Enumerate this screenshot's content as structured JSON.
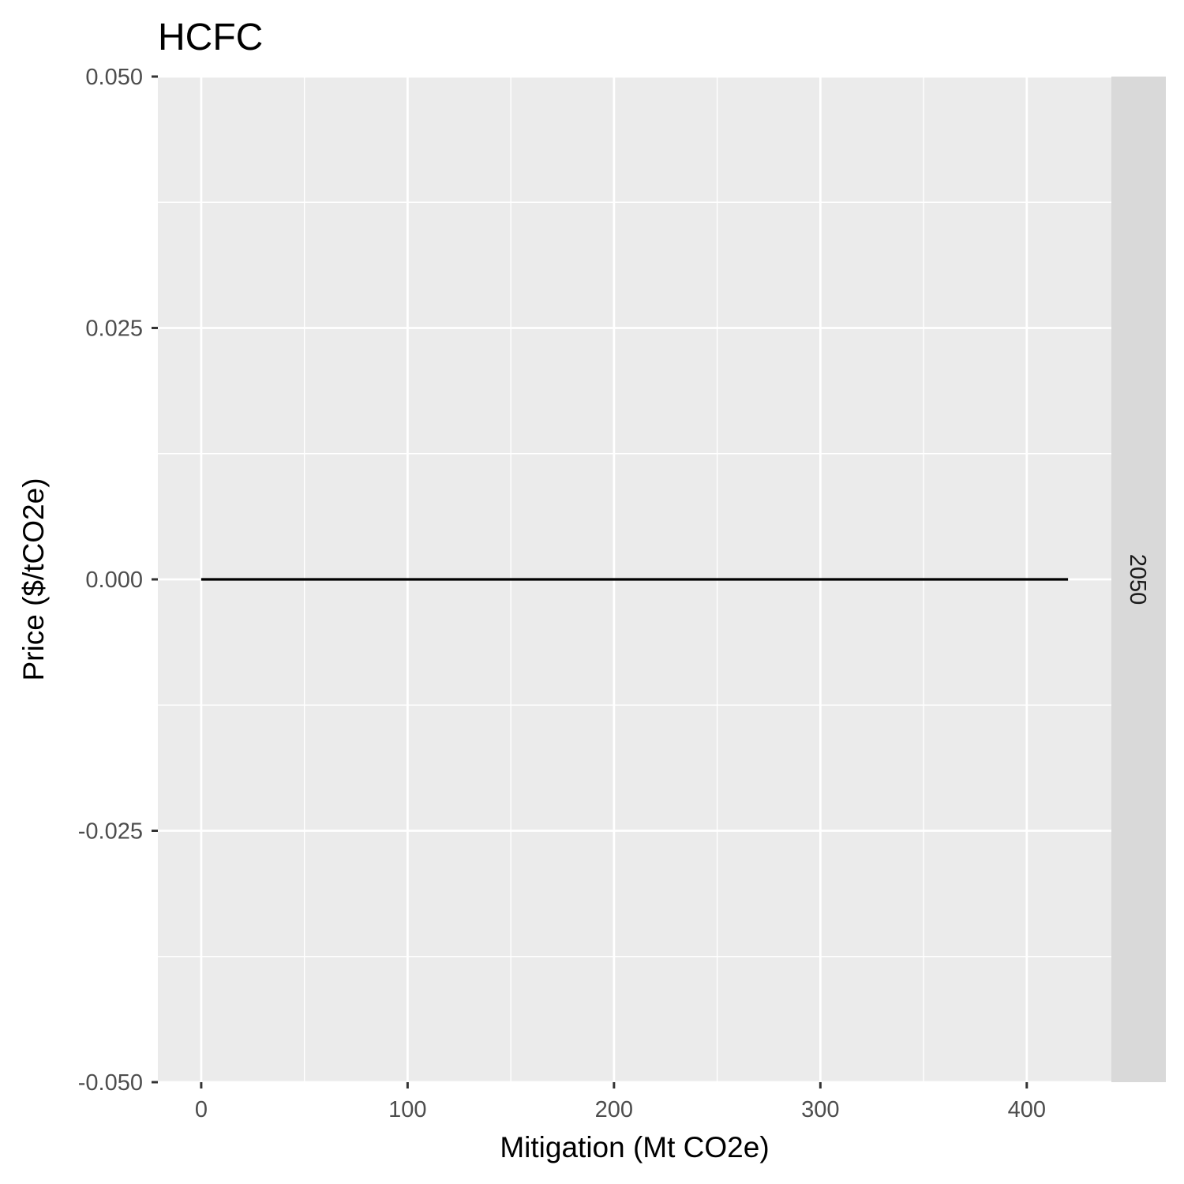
{
  "chart_data": {
    "type": "line",
    "title": "HCFC",
    "xlabel": "Mitigation (Mt CO2e)",
    "ylabel": "Price ($/tCO2e)",
    "facet_label": "2050",
    "xlim": [
      -21,
      441
    ],
    "ylim": [
      -0.05,
      0.05
    ],
    "x_ticks": [
      0,
      100,
      200,
      300,
      400
    ],
    "x_tick_labels": [
      "0",
      "100",
      "200",
      "300",
      "400"
    ],
    "y_ticks": [
      0.05,
      0.025,
      0,
      -0.025,
      -0.05
    ],
    "y_tick_labels": [
      "0.050",
      "0.025",
      "0.000",
      "-0.025",
      "-0.050"
    ],
    "x_minor": [
      50,
      150,
      250,
      350
    ],
    "y_minor": [
      0.0375,
      0.0125,
      -0.0125,
      -0.0375
    ],
    "grid": true,
    "series": [
      {
        "x": [
          0,
          420
        ],
        "y": [
          0,
          0
        ],
        "color": "#000000"
      }
    ],
    "colors": {
      "panel_bg": "#ebebeb",
      "grid": "#ffffff",
      "strip_bg": "#d9d9d9",
      "tick": "#333333"
    }
  }
}
